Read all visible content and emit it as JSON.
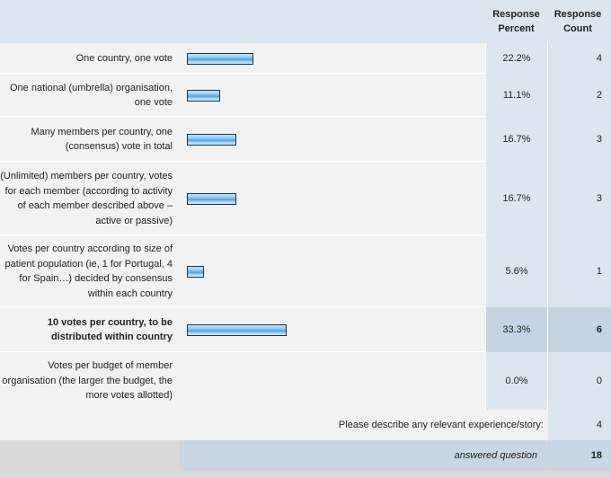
{
  "header": {
    "percent_label": "Response\nPercent",
    "count_label": "Response\nCount"
  },
  "chart_data": {
    "type": "bar",
    "categories": [
      "One country, one vote",
      "One national (umbrella) organisation, one vote",
      "Many members per country, one (consensus) vote in total",
      "(Unlimited) members per country, votes for each member (according to activity of each member described above – active or passive)",
      "Votes per country according to size of patient population (ie, 1 for Portugal, 4 for Spain…) decided by consensus within each country",
      "10 votes per country, to be distributed within country",
      "Votes per budget of member organisation (the larger the budget, the more votes allotted)"
    ],
    "values": [
      22.2,
      11.1,
      16.7,
      16.7,
      5.6,
      33.3,
      0.0
    ],
    "counts": [
      4,
      2,
      3,
      3,
      1,
      6,
      0
    ],
    "xlim": [
      0,
      100
    ]
  },
  "rows": [
    {
      "label": "One country, one vote",
      "percent": "22.2%",
      "count": "4"
    },
    {
      "label": "One national (umbrella) organisation, one vote",
      "percent": "11.1%",
      "count": "2"
    },
    {
      "label": "Many members per country, one (consensus) vote in total",
      "percent": "16.7%",
      "count": "3"
    },
    {
      "label": "(Unlimited) members per country, votes for each member (according to activity of each member described above – active or passive)",
      "percent": "16.7%",
      "count": "3"
    },
    {
      "label": "Votes per country according to size of patient population (ie, 1 for Portugal, 4 for Spain…) decided by consensus within each country",
      "percent": "5.6%",
      "count": "1"
    },
    {
      "label": "10 votes per country, to be distributed within country",
      "percent": "33.3%",
      "count": "6"
    },
    {
      "label": "Votes per budget of member organisation (the larger the budget, the more votes allotted)",
      "percent": "0.0%",
      "count": "0"
    }
  ],
  "footer": {
    "describe_label": "Please describe any relevant experience/story:",
    "describe_count": "4",
    "answered_label": "answered question",
    "answered_count": "18"
  },
  "colors": {
    "header_bg": "#dce6f0",
    "label_bg": "#f2f2f2",
    "highlight_bg": "#c5d3e2",
    "bar_blue": "#4f9fdc"
  }
}
